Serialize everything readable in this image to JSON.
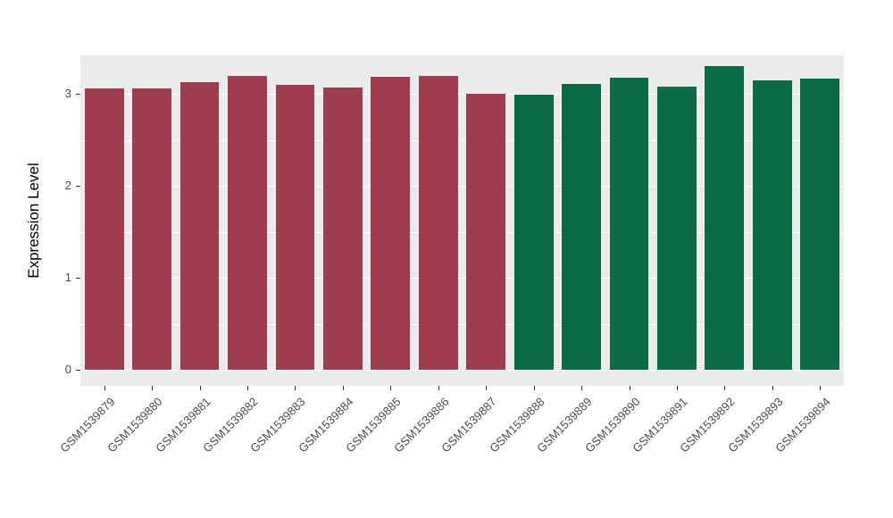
{
  "chart_data": {
    "type": "bar",
    "title": "",
    "xlabel": "",
    "ylabel": "Expression Level",
    "categories": [
      "GSM1539879",
      "GSM1539880",
      "GSM1539881",
      "GSM1539882",
      "GSM1539883",
      "GSM1539884",
      "GSM1539885",
      "GSM1539886",
      "GSM1539887",
      "GSM1539888",
      "GSM1539889",
      "GSM1539890",
      "GSM1539891",
      "GSM1539892",
      "GSM1539893",
      "GSM1539894"
    ],
    "values": [
      3.06,
      3.06,
      3.13,
      3.2,
      3.1,
      3.07,
      3.19,
      3.2,
      3.0,
      2.99,
      3.11,
      3.18,
      3.08,
      3.3,
      3.15,
      3.17
    ],
    "groups": [
      "A",
      "A",
      "A",
      "A",
      "A",
      "A",
      "A",
      "A",
      "A",
      "B",
      "B",
      "B",
      "B",
      "B",
      "B",
      "B"
    ],
    "group_colors": {
      "A": "#9E3D50",
      "B": "#0C6B45"
    },
    "ylim": [
      -0.17,
      3.42
    ],
    "yticks": [
      0,
      1,
      2,
      3
    ],
    "ytick_labels": [
      "0",
      "1",
      "2",
      "3"
    ],
    "yticks_minor": [
      0.5,
      1.5,
      2.5
    ],
    "bar_width_ratio": 0.82,
    "panel_bg": "#EBEBEB",
    "grid_major_color": "#FFFFFF",
    "grid_minor_color": "#FFFFFF",
    "axis_text_color": "#4D4D4D",
    "axis_title_color": "#000000",
    "legend": "none",
    "grid": "on"
  }
}
